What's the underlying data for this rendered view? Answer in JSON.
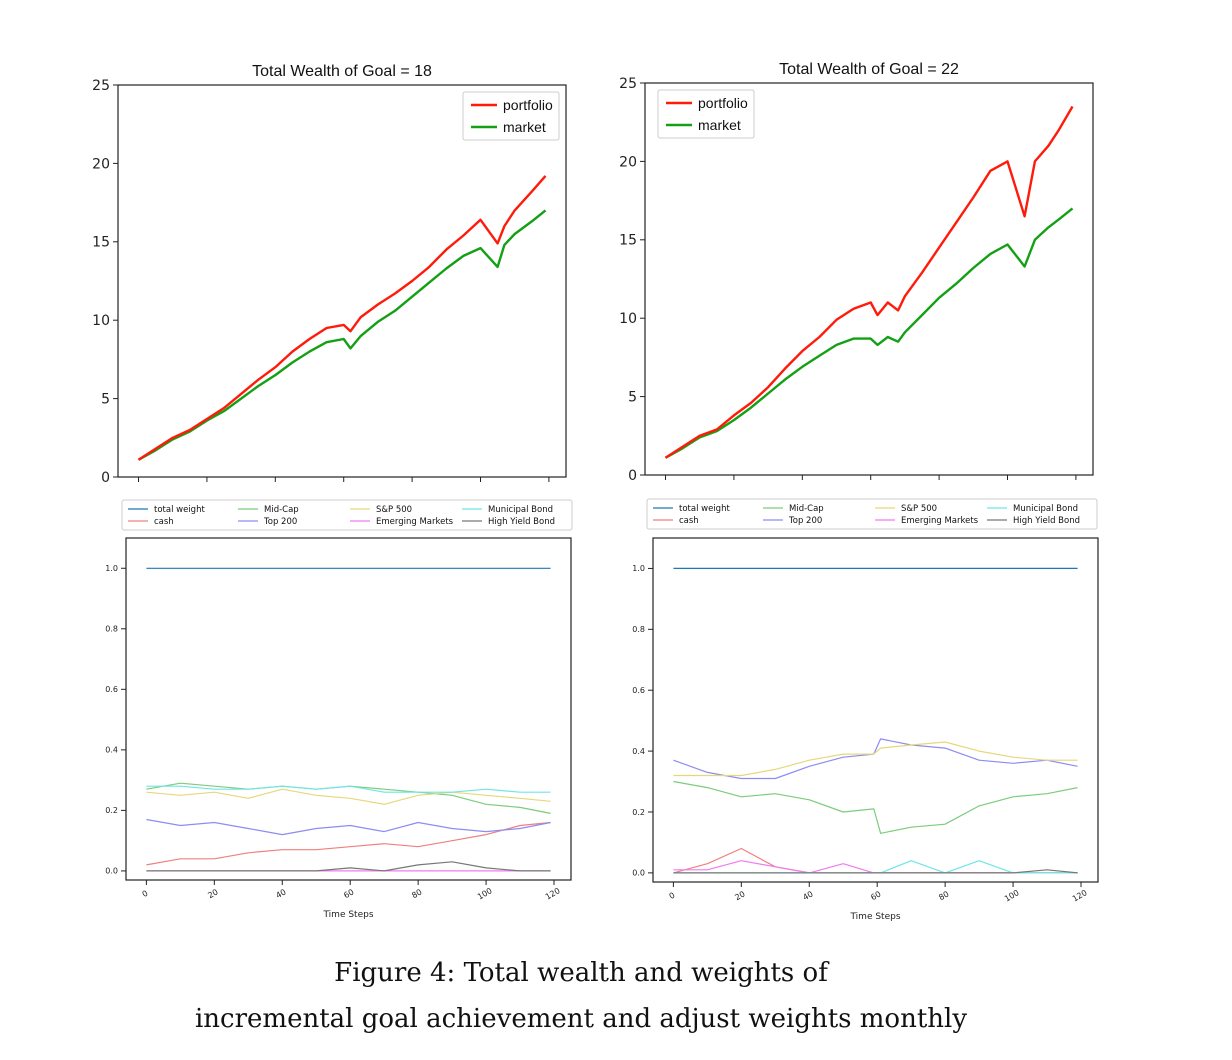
{
  "figure": {
    "caption_line1": "Figure 4: Total wealth and weights of",
    "caption_line2": "incremental goal achievement and adjust weights monthly"
  },
  "colors": {
    "portfolio": "#ff1a0a",
    "market": "#14a014",
    "total weight": "#1f77b4",
    "cash": "#f08080",
    "Mid-Cap": "#7ccc7c",
    "Top 200": "#8c8cf5",
    "S&P 500": "#e6d87a",
    "Emerging Markets": "#f07af0",
    "Municipal Bond": "#6ee6e6",
    "High Yield Bond": "#777777"
  },
  "chart_data": [
    {
      "type": "line",
      "title": "Total Wealth of Goal = 18",
      "xlabel": "",
      "ylabel": "",
      "xlim": [
        -6,
        125
      ],
      "ylim": [
        0,
        25
      ],
      "yticks": [
        0,
        5,
        10,
        15,
        20,
        25
      ],
      "xticks": [
        0,
        20,
        40,
        60,
        80,
        100,
        120
      ],
      "xtick_labels_shown": false,
      "grid": false,
      "legend": "top-right",
      "x": [
        0,
        5,
        10,
        15,
        20,
        25,
        30,
        35,
        40,
        45,
        50,
        55,
        60,
        62,
        65,
        70,
        75,
        80,
        85,
        90,
        95,
        100,
        105,
        107,
        110,
        115,
        119
      ],
      "series": [
        {
          "name": "portfolio",
          "values": [
            1.1,
            1.8,
            2.5,
            3.0,
            3.7,
            4.4,
            5.3,
            6.2,
            7.0,
            8.0,
            8.8,
            9.5,
            9.7,
            9.3,
            10.2,
            11.0,
            11.7,
            12.5,
            13.4,
            14.5,
            15.4,
            16.4,
            14.9,
            16.0,
            17.0,
            18.2,
            19.2
          ]
        },
        {
          "name": "market",
          "values": [
            1.1,
            1.7,
            2.4,
            2.9,
            3.6,
            4.2,
            5.0,
            5.8,
            6.5,
            7.3,
            8.0,
            8.6,
            8.8,
            8.2,
            9.0,
            9.9,
            10.6,
            11.5,
            12.4,
            13.3,
            14.1,
            14.6,
            13.4,
            14.8,
            15.5,
            16.3,
            17.0
          ]
        }
      ]
    },
    {
      "type": "line",
      "title": "Total Wealth of Goal = 22",
      "xlabel": "",
      "ylabel": "",
      "xlim": [
        -6,
        125
      ],
      "ylim": [
        0,
        25
      ],
      "yticks": [
        0,
        5,
        10,
        15,
        20,
        25
      ],
      "xticks": [
        0,
        20,
        40,
        60,
        80,
        100,
        120
      ],
      "xtick_labels_shown": false,
      "grid": false,
      "legend": "top-left",
      "x": [
        0,
        5,
        10,
        15,
        20,
        25,
        30,
        35,
        40,
        45,
        50,
        55,
        60,
        62,
        65,
        68,
        70,
        75,
        80,
        85,
        90,
        95,
        100,
        105,
        108,
        112,
        115,
        119
      ],
      "series": [
        {
          "name": "portfolio",
          "values": [
            1.1,
            1.8,
            2.5,
            2.9,
            3.8,
            4.6,
            5.6,
            6.8,
            7.9,
            8.8,
            9.9,
            10.6,
            11.0,
            10.2,
            11.0,
            10.5,
            11.4,
            12.9,
            14.5,
            16.1,
            17.7,
            19.4,
            20.0,
            16.5,
            20.0,
            21.0,
            22.0,
            23.5
          ]
        },
        {
          "name": "market",
          "values": [
            1.1,
            1.7,
            2.4,
            2.8,
            3.5,
            4.3,
            5.2,
            6.1,
            6.9,
            7.6,
            8.3,
            8.7,
            8.7,
            8.3,
            8.8,
            8.5,
            9.1,
            10.2,
            11.3,
            12.2,
            13.2,
            14.1,
            14.7,
            13.3,
            15.0,
            15.8,
            16.3,
            17.0
          ]
        }
      ]
    },
    {
      "type": "line",
      "title": "",
      "xlabel": "Time Steps",
      "ylabel": "",
      "xlim": [
        -6,
        125
      ],
      "ylim": [
        -0.03,
        1.1
      ],
      "yticks": [
        0.0,
        0.2,
        0.4,
        0.6,
        0.8,
        1.0
      ],
      "xticks": [
        0,
        20,
        40,
        60,
        80,
        100,
        120
      ],
      "grid": false,
      "legend": "above",
      "legend_order": [
        "total weight",
        "cash",
        "Mid-Cap",
        "Top 200",
        "S&P 500",
        "Emerging Markets",
        "Municipal Bond",
        "High Yield Bond"
      ],
      "x": [
        0,
        10,
        20,
        30,
        40,
        50,
        60,
        70,
        80,
        90,
        100,
        110,
        119
      ],
      "series": [
        {
          "name": "total weight",
          "values": [
            1.0,
            1.0,
            1.0,
            1.0,
            1.0,
            1.0,
            1.0,
            1.0,
            1.0,
            1.0,
            1.0,
            1.0,
            1.0
          ]
        },
        {
          "name": "cash",
          "values": [
            0.02,
            0.04,
            0.04,
            0.06,
            0.07,
            0.07,
            0.08,
            0.09,
            0.08,
            0.1,
            0.12,
            0.15,
            0.16
          ]
        },
        {
          "name": "Mid-Cap",
          "values": [
            0.27,
            0.29,
            0.28,
            0.27,
            0.28,
            0.27,
            0.28,
            0.27,
            0.26,
            0.25,
            0.22,
            0.21,
            0.19
          ]
        },
        {
          "name": "Top 200",
          "values": [
            0.17,
            0.15,
            0.16,
            0.14,
            0.12,
            0.14,
            0.15,
            0.13,
            0.16,
            0.14,
            0.13,
            0.14,
            0.16
          ]
        },
        {
          "name": "S&P 500",
          "values": [
            0.26,
            0.25,
            0.26,
            0.24,
            0.27,
            0.25,
            0.24,
            0.22,
            0.25,
            0.26,
            0.25,
            0.24,
            0.23
          ]
        },
        {
          "name": "Emerging Markets",
          "values": [
            0.0,
            0.0,
            0.0,
            0.0,
            0.0,
            0.0,
            0.0,
            0.0,
            0.0,
            0.0,
            0.0,
            0.0,
            0.0
          ]
        },
        {
          "name": "Municipal Bond",
          "values": [
            0.28,
            0.28,
            0.27,
            0.27,
            0.28,
            0.27,
            0.28,
            0.26,
            0.26,
            0.26,
            0.27,
            0.26,
            0.26
          ]
        },
        {
          "name": "High Yield Bond",
          "values": [
            0.0,
            0.0,
            0.0,
            0.0,
            0.0,
            0.0,
            0.01,
            0.0,
            0.02,
            0.03,
            0.01,
            0.0,
            0.0
          ]
        }
      ]
    },
    {
      "type": "line",
      "title": "",
      "xlabel": "Time Steps",
      "ylabel": "",
      "xlim": [
        -6,
        125
      ],
      "ylim": [
        -0.03,
        1.1
      ],
      "yticks": [
        0.0,
        0.2,
        0.4,
        0.6,
        0.8,
        1.0
      ],
      "xticks": [
        0,
        20,
        40,
        60,
        80,
        100,
        120
      ],
      "grid": false,
      "legend": "above",
      "legend_order": [
        "total weight",
        "cash",
        "Mid-Cap",
        "Top 200",
        "S&P 500",
        "Emerging Markets",
        "Municipal Bond",
        "High Yield Bond"
      ],
      "x": [
        0,
        10,
        20,
        30,
        40,
        50,
        59,
        61,
        70,
        80,
        90,
        100,
        110,
        119
      ],
      "series": [
        {
          "name": "total weight",
          "values": [
            1.0,
            1.0,
            1.0,
            1.0,
            1.0,
            1.0,
            1.0,
            1.0,
            1.0,
            1.0,
            1.0,
            1.0,
            1.0,
            1.0
          ]
        },
        {
          "name": "cash",
          "values": [
            0.0,
            0.03,
            0.08,
            0.02,
            0.0,
            0.0,
            0.0,
            0.0,
            0.0,
            0.0,
            0.0,
            0.0,
            0.0,
            0.0
          ]
        },
        {
          "name": "Mid-Cap",
          "values": [
            0.3,
            0.28,
            0.25,
            0.26,
            0.24,
            0.2,
            0.21,
            0.13,
            0.15,
            0.16,
            0.22,
            0.25,
            0.26,
            0.28
          ]
        },
        {
          "name": "Top 200",
          "values": [
            0.37,
            0.33,
            0.31,
            0.31,
            0.35,
            0.38,
            0.39,
            0.44,
            0.42,
            0.41,
            0.37,
            0.36,
            0.37,
            0.35
          ]
        },
        {
          "name": "S&P 500",
          "values": [
            0.32,
            0.32,
            0.32,
            0.34,
            0.37,
            0.39,
            0.39,
            0.41,
            0.42,
            0.43,
            0.4,
            0.38,
            0.37,
            0.37
          ]
        },
        {
          "name": "Emerging Markets",
          "values": [
            0.01,
            0.01,
            0.04,
            0.02,
            0.0,
            0.03,
            0.0,
            0.0,
            0.0,
            0.0,
            0.0,
            0.0,
            0.0,
            0.0
          ]
        },
        {
          "name": "Municipal Bond",
          "values": [
            0.0,
            0.0,
            0.0,
            0.0,
            0.0,
            0.0,
            0.0,
            0.0,
            0.04,
            0.0,
            0.04,
            0.0,
            0.0,
            0.0
          ]
        },
        {
          "name": "High Yield Bond",
          "values": [
            0.0,
            0.0,
            0.0,
            0.0,
            0.0,
            0.0,
            0.0,
            0.0,
            0.0,
            0.0,
            0.0,
            0.0,
            0.01,
            0.0
          ]
        }
      ]
    }
  ]
}
